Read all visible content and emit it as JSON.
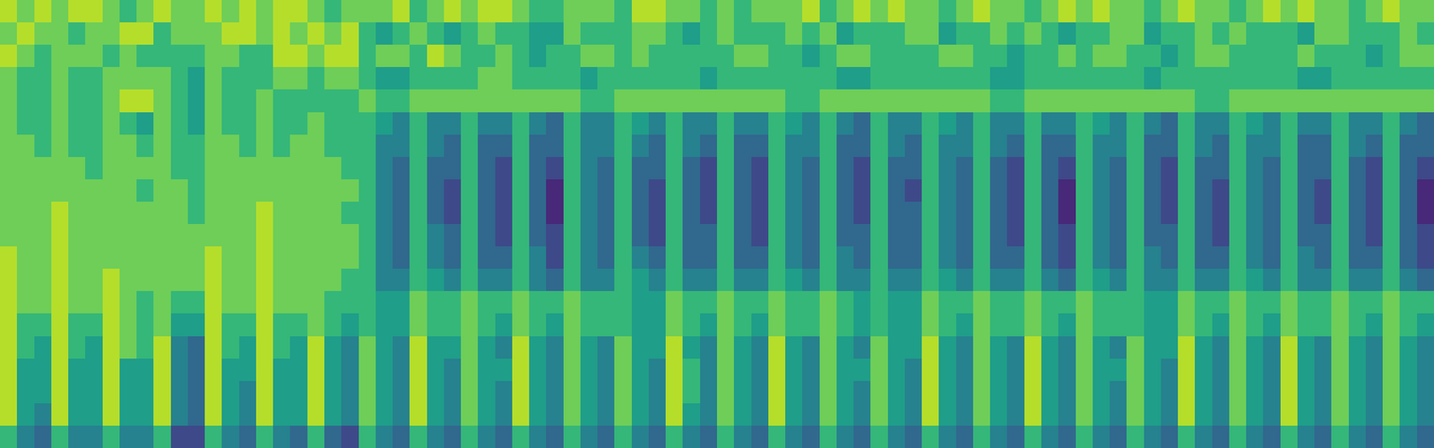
{
  "chart_data": {
    "type": "heatmap",
    "tick_labels": false,
    "zlim": [
      0,
      9
    ],
    "cells": [
      [
        8,
        7,
        8,
        7,
        8,
        8,
        7,
        6,
        7,
        8,
        7,
        7,
        8,
        7,
        8,
        7,
        8,
        8,
        7,
        6,
        7,
        7,
        7,
        8,
        6,
        7,
        8,
        7,
        8,
        8,
        7,
        6,
        6,
        7,
        7,
        7,
        6,
        8,
        8,
        7,
        7,
        6,
        7,
        6,
        7,
        7,
        7,
        8,
        6,
        7,
        8,
        7,
        8,
        7,
        7,
        6,
        7,
        8,
        7,
        7,
        6,
        7,
        8,
        7,
        8,
        7,
        7,
        6,
        7,
        8,
        7,
        7,
        6,
        7,
        8,
        7,
        8,
        7,
        7,
        6,
        7,
        8,
        7,
        7
      ],
      [
        7,
        8,
        7,
        7,
        6,
        7,
        7,
        8,
        8,
        6,
        7,
        7,
        7,
        8,
        8,
        7,
        8,
        7,
        8,
        7,
        8,
        6,
        5,
        6,
        7,
        6,
        5,
        6,
        7,
        6,
        6,
        5,
        5,
        7,
        6,
        6,
        6,
        7,
        7,
        6,
        5,
        6,
        7,
        6,
        6,
        6,
        7,
        6,
        7,
        5,
        6,
        6,
        6,
        7,
        7,
        5,
        6,
        6,
        7,
        6,
        7,
        6,
        5,
        6,
        6,
        7,
        7,
        5,
        6,
        6,
        7,
        6,
        7,
        6,
        6,
        6,
        5,
        7,
        7,
        6,
        6,
        6,
        7,
        6
      ],
      [
        8,
        7,
        6,
        7,
        7,
        7,
        6,
        7,
        6,
        6,
        6,
        6,
        7,
        7,
        6,
        6,
        8,
        8,
        7,
        8,
        8,
        6,
        7,
        7,
        6,
        8,
        7,
        6,
        6,
        7,
        6,
        5,
        6,
        6,
        7,
        7,
        6,
        7,
        6,
        6,
        6,
        6,
        6,
        7,
        7,
        6,
        6,
        5,
        6,
        7,
        7,
        6,
        6,
        6,
        6,
        7,
        7,
        6,
        6,
        5,
        6,
        6,
        7,
        6,
        7,
        7,
        6,
        6,
        5,
        6,
        7,
        7,
        6,
        6,
        6,
        6,
        7,
        6,
        6,
        6,
        5,
        6,
        7,
        7
      ],
      [
        7,
        6,
        6,
        7,
        6,
        6,
        7,
        7,
        7,
        7,
        6,
        5,
        7,
        6,
        6,
        6,
        7,
        7,
        6,
        7,
        7,
        6,
        5,
        5,
        6,
        6,
        6,
        6,
        7,
        7,
        6,
        6,
        6,
        6,
        5,
        6,
        6,
        6,
        6,
        6,
        6,
        5,
        6,
        6,
        6,
        6,
        6,
        6,
        6,
        5,
        5,
        6,
        6,
        6,
        6,
        6,
        6,
        6,
        5,
        5,
        6,
        6,
        6,
        6,
        6,
        6,
        6,
        5,
        6,
        6,
        6,
        6,
        6,
        6,
        6,
        6,
        5,
        5,
        6,
        6,
        6,
        6,
        6,
        6
      ],
      [
        7,
        6,
        6,
        7,
        6,
        6,
        7,
        8,
        8,
        7,
        6,
        5,
        7,
        6,
        6,
        7,
        6,
        6,
        6,
        6,
        6,
        7,
        6,
        6,
        7,
        7,
        7,
        7,
        7,
        7,
        7,
        7,
        7,
        7,
        6,
        6,
        7,
        7,
        7,
        7,
        7,
        7,
        7,
        7,
        7,
        7,
        6,
        6,
        7,
        7,
        7,
        7,
        7,
        7,
        7,
        7,
        7,
        7,
        6,
        6,
        7,
        7,
        7,
        7,
        7,
        7,
        7,
        7,
        7,
        7,
        6,
        6,
        7,
        7,
        7,
        7,
        7,
        7,
        7,
        7,
        7,
        7,
        7,
        7
      ],
      [
        7,
        6,
        6,
        7,
        6,
        6,
        7,
        6,
        5,
        7,
        6,
        5,
        7,
        6,
        6,
        7,
        6,
        6,
        7,
        6,
        6,
        6,
        5,
        4,
        6,
        4,
        4,
        6,
        4,
        4,
        6,
        4,
        3,
        6,
        4,
        4,
        6,
        5,
        4,
        6,
        4,
        4,
        6,
        4,
        4,
        6,
        5,
        4,
        6,
        4,
        3,
        6,
        4,
        4,
        6,
        5,
        4,
        6,
        4,
        4,
        6,
        4,
        4,
        6,
        5,
        4,
        6,
        4,
        3,
        6,
        4,
        4,
        6,
        5,
        4,
        6,
        4,
        4,
        6,
        4,
        4,
        6,
        4,
        3
      ],
      [
        7,
        7,
        6,
        7,
        6,
        6,
        7,
        7,
        6,
        7,
        6,
        6,
        7,
        7,
        6,
        7,
        6,
        7,
        7,
        6,
        6,
        6,
        4,
        4,
        6,
        4,
        3,
        6,
        3,
        3,
        6,
        3,
        3,
        6,
        4,
        4,
        6,
        4,
        3,
        6,
        4,
        3,
        6,
        3,
        3,
        6,
        4,
        4,
        6,
        3,
        3,
        6,
        4,
        3,
        6,
        4,
        4,
        6,
        4,
        3,
        6,
        3,
        3,
        6,
        4,
        4,
        6,
        3,
        3,
        6,
        4,
        3,
        6,
        4,
        4,
        6,
        3,
        3,
        6,
        4,
        3,
        6,
        3,
        3
      ],
      [
        7,
        7,
        7,
        7,
        7,
        6,
        7,
        7,
        7,
        7,
        6,
        6,
        7,
        7,
        7,
        7,
        7,
        7,
        7,
        7,
        6,
        6,
        4,
        3,
        6,
        3,
        3,
        6,
        3,
        2,
        6,
        3,
        2,
        6,
        4,
        3,
        6,
        3,
        3,
        6,
        3,
        2,
        6,
        3,
        2,
        6,
        4,
        3,
        6,
        3,
        2,
        6,
        3,
        3,
        6,
        4,
        3,
        6,
        3,
        2,
        6,
        3,
        2,
        6,
        4,
        3,
        6,
        3,
        2,
        6,
        3,
        3,
        6,
        4,
        3,
        6,
        3,
        3,
        6,
        3,
        2,
        6,
        3,
        2
      ],
      [
        7,
        7,
        7,
        7,
        7,
        7,
        7,
        7,
        6,
        7,
        7,
        6,
        7,
        7,
        7,
        7,
        7,
        7,
        7,
        7,
        7,
        6,
        4,
        3,
        6,
        3,
        2,
        6,
        3,
        2,
        6,
        3,
        1,
        6,
        4,
        3,
        6,
        3,
        2,
        6,
        3,
        2,
        6,
        3,
        2,
        6,
        4,
        3,
        6,
        3,
        2,
        6,
        3,
        2,
        6,
        4,
        3,
        6,
        3,
        2,
        6,
        3,
        1,
        6,
        4,
        3,
        6,
        3,
        2,
        6,
        3,
        2,
        6,
        4,
        3,
        6,
        3,
        2,
        6,
        3,
        2,
        6,
        3,
        1
      ],
      [
        7,
        7,
        7,
        8,
        7,
        7,
        7,
        7,
        7,
        7,
        7,
        6,
        7,
        7,
        7,
        8,
        7,
        7,
        7,
        7,
        6,
        6,
        4,
        3,
        6,
        3,
        2,
        6,
        3,
        2,
        6,
        3,
        1,
        6,
        4,
        3,
        6,
        3,
        2,
        6,
        3,
        2,
        6,
        3,
        2,
        6,
        4,
        3,
        6,
        3,
        2,
        6,
        3,
        3,
        6,
        4,
        3,
        6,
        3,
        2,
        6,
        3,
        1,
        6,
        4,
        3,
        6,
        3,
        2,
        6,
        3,
        2,
        6,
        4,
        3,
        6,
        3,
        2,
        6,
        3,
        2,
        6,
        3,
        1
      ],
      [
        7,
        7,
        7,
        8,
        7,
        7,
        7,
        7,
        7,
        7,
        7,
        7,
        7,
        7,
        7,
        8,
        7,
        7,
        7,
        7,
        7,
        6,
        4,
        3,
        6,
        4,
        3,
        6,
        3,
        2,
        6,
        3,
        2,
        6,
        4,
        3,
        6,
        3,
        2,
        6,
        3,
        3,
        6,
        3,
        2,
        6,
        4,
        3,
        6,
        3,
        3,
        6,
        3,
        3,
        6,
        4,
        3,
        6,
        3,
        2,
        6,
        3,
        2,
        6,
        4,
        3,
        6,
        3,
        3,
        6,
        3,
        2,
        6,
        4,
        3,
        6,
        3,
        3,
        6,
        3,
        2,
        6,
        3,
        2
      ],
      [
        8,
        7,
        7,
        8,
        7,
        7,
        7,
        7,
        7,
        7,
        7,
        7,
        8,
        7,
        7,
        8,
        7,
        7,
        7,
        7,
        7,
        6,
        4,
        3,
        6,
        4,
        3,
        6,
        3,
        3,
        6,
        4,
        2,
        6,
        4,
        3,
        6,
        4,
        3,
        6,
        3,
        3,
        6,
        3,
        3,
        6,
        4,
        3,
        6,
        4,
        3,
        6,
        3,
        3,
        6,
        4,
        3,
        6,
        3,
        3,
        6,
        3,
        2,
        6,
        4,
        3,
        6,
        4,
        3,
        6,
        3,
        3,
        6,
        4,
        3,
        6,
        4,
        3,
        6,
        3,
        3,
        6,
        3,
        2
      ],
      [
        8,
        7,
        7,
        8,
        7,
        7,
        8,
        7,
        7,
        7,
        7,
        7,
        8,
        7,
        7,
        8,
        7,
        7,
        7,
        7,
        6,
        6,
        4,
        4,
        6,
        5,
        4,
        6,
        4,
        4,
        6,
        4,
        3,
        6,
        4,
        4,
        6,
        5,
        4,
        6,
        4,
        4,
        6,
        4,
        4,
        6,
        5,
        4,
        6,
        4,
        4,
        6,
        4,
        4,
        6,
        5,
        4,
        6,
        4,
        4,
        6,
        4,
        3,
        6,
        5,
        4,
        6,
        4,
        4,
        6,
        4,
        4,
        6,
        5,
        4,
        6,
        4,
        4,
        6,
        4,
        4,
        6,
        4,
        3
      ],
      [
        8,
        7,
        7,
        8,
        7,
        7,
        8,
        7,
        6,
        7,
        6,
        6,
        8,
        7,
        7,
        8,
        7,
        7,
        7,
        6,
        6,
        6,
        5,
        5,
        7,
        6,
        6,
        7,
        6,
        6,
        7,
        6,
        6,
        7,
        6,
        6,
        6,
        5,
        5,
        7,
        6,
        6,
        7,
        6,
        6,
        7,
        6,
        6,
        7,
        6,
        5,
        6,
        5,
        5,
        7,
        6,
        6,
        7,
        6,
        6,
        7,
        6,
        6,
        7,
        6,
        6,
        6,
        5,
        5,
        7,
        6,
        6,
        7,
        6,
        6,
        7,
        6,
        6,
        7,
        6,
        6,
        7,
        6,
        6
      ],
      [
        8,
        6,
        6,
        8,
        6,
        6,
        8,
        7,
        6,
        7,
        5,
        5,
        8,
        6,
        6,
        8,
        6,
        6,
        7,
        6,
        5,
        6,
        5,
        5,
        7,
        6,
        6,
        7,
        6,
        5,
        7,
        6,
        5,
        7,
        6,
        6,
        6,
        5,
        5,
        7,
        6,
        5,
        7,
        6,
        5,
        7,
        6,
        6,
        7,
        6,
        5,
        6,
        5,
        5,
        7,
        6,
        5,
        7,
        6,
        6,
        7,
        6,
        5,
        7,
        6,
        6,
        6,
        5,
        5,
        7,
        6,
        5,
        7,
        6,
        5,
        7,
        6,
        6,
        7,
        6,
        5,
        7,
        6,
        5
      ],
      [
        8,
        6,
        5,
        8,
        6,
        5,
        8,
        7,
        6,
        8,
        4,
        3,
        8,
        6,
        5,
        8,
        6,
        5,
        8,
        5,
        4,
        7,
        5,
        4,
        8,
        5,
        5,
        7,
        5,
        4,
        8,
        5,
        4,
        7,
        5,
        4,
        7,
        5,
        5,
        8,
        5,
        4,
        7,
        5,
        4,
        8,
        5,
        4,
        7,
        5,
        4,
        7,
        5,
        5,
        8,
        5,
        4,
        7,
        5,
        4,
        8,
        5,
        4,
        7,
        5,
        4,
        7,
        5,
        5,
        8,
        5,
        4,
        7,
        5,
        4,
        8,
        5,
        4,
        7,
        5,
        4,
        7,
        5,
        4
      ],
      [
        8,
        5,
        5,
        8,
        5,
        5,
        8,
        5,
        5,
        8,
        4,
        3,
        8,
        5,
        5,
        8,
        5,
        5,
        8,
        5,
        4,
        7,
        5,
        4,
        8,
        5,
        4,
        7,
        5,
        5,
        8,
        5,
        4,
        7,
        5,
        4,
        7,
        5,
        4,
        8,
        6,
        4,
        7,
        5,
        4,
        8,
        5,
        4,
        7,
        5,
        5,
        7,
        5,
        4,
        8,
        5,
        4,
        7,
        5,
        4,
        8,
        5,
        4,
        7,
        5,
        5,
        7,
        5,
        4,
        8,
        5,
        4,
        7,
        5,
        4,
        8,
        5,
        4,
        7,
        5,
        4,
        7,
        5,
        4
      ],
      [
        8,
        5,
        5,
        8,
        5,
        5,
        8,
        5,
        5,
        8,
        4,
        3,
        8,
        5,
        4,
        8,
        5,
        5,
        8,
        5,
        4,
        7,
        5,
        4,
        8,
        5,
        4,
        7,
        5,
        4,
        8,
        5,
        4,
        7,
        5,
        4,
        7,
        5,
        4,
        8,
        6,
        4,
        7,
        5,
        4,
        8,
        5,
        4,
        7,
        5,
        4,
        7,
        5,
        4,
        8,
        5,
        4,
        7,
        5,
        4,
        8,
        5,
        4,
        7,
        5,
        4,
        7,
        5,
        4,
        8,
        5,
        4,
        7,
        5,
        4,
        8,
        5,
        4,
        7,
        5,
        4,
        7,
        5,
        4
      ],
      [
        8,
        5,
        4,
        8,
        5,
        5,
        8,
        5,
        5,
        8,
        4,
        3,
        8,
        5,
        4,
        8,
        5,
        5,
        8,
        5,
        4,
        7,
        5,
        4,
        8,
        5,
        4,
        7,
        5,
        4,
        8,
        5,
        4,
        7,
        5,
        4,
        7,
        5,
        4,
        8,
        5,
        4,
        7,
        5,
        4,
        8,
        5,
        4,
        7,
        5,
        4,
        7,
        5,
        4,
        8,
        5,
        4,
        7,
        5,
        4,
        8,
        5,
        4,
        7,
        5,
        4,
        7,
        5,
        4,
        8,
        5,
        4,
        7,
        5,
        4,
        8,
        5,
        4,
        7,
        5,
        4,
        7,
        5,
        4
      ],
      [
        6,
        4,
        3,
        6,
        4,
        4,
        6,
        4,
        4,
        6,
        2,
        2,
        6,
        4,
        3,
        6,
        4,
        3,
        6,
        3,
        2,
        6,
        4,
        3,
        6,
        4,
        3,
        6,
        4,
        3,
        6,
        4,
        3,
        6,
        4,
        3,
        6,
        4,
        3,
        6,
        4,
        3,
        6,
        4,
        3,
        6,
        4,
        3,
        6,
        4,
        3,
        6,
        4,
        3,
        6,
        4,
        3,
        6,
        4,
        3,
        6,
        4,
        3,
        6,
        4,
        3,
        6,
        4,
        3,
        6,
        4,
        3,
        6,
        4,
        3,
        6,
        4,
        3,
        6,
        4,
        3,
        6,
        4,
        3
      ]
    ]
  }
}
